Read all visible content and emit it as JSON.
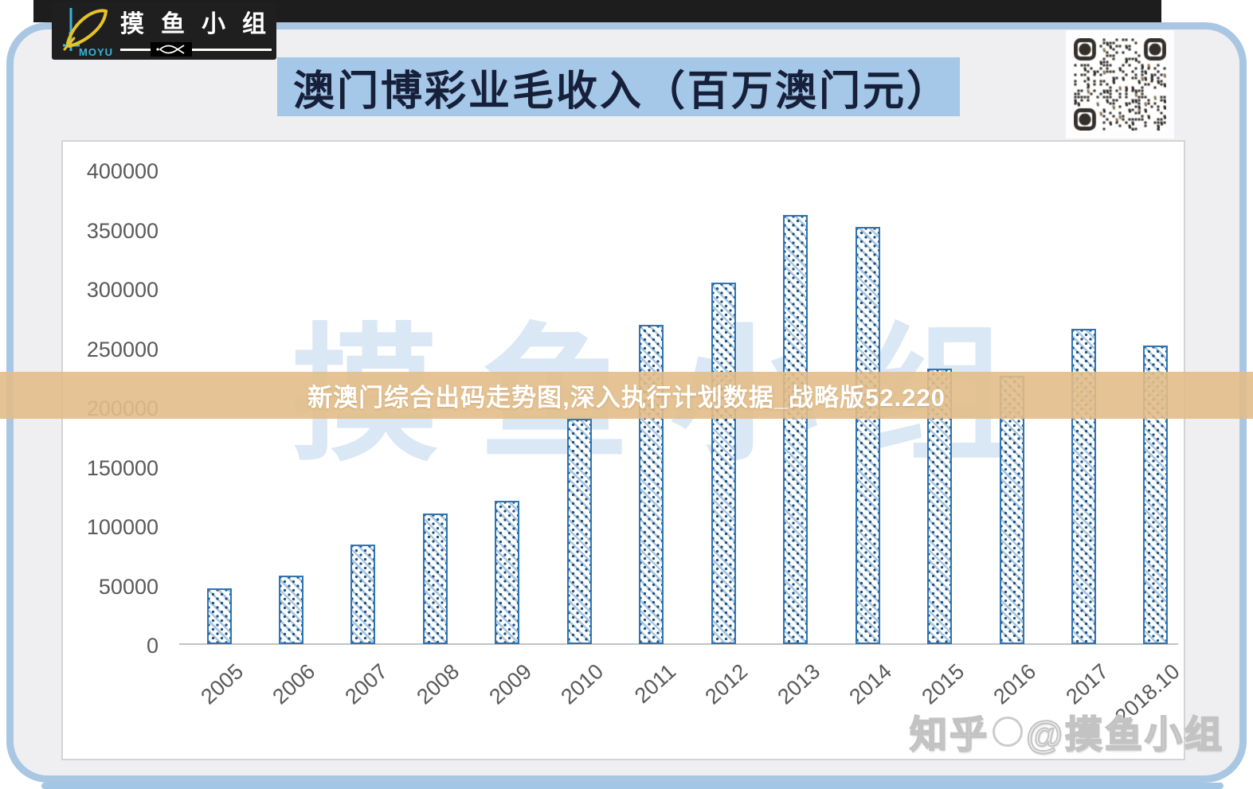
{
  "logo": {
    "brand": "MOYU",
    "group_name": "摸鱼小组"
  },
  "header": {
    "title": "澳门博彩业毛收入（百万澳门元）"
  },
  "banner": {
    "text": "新澳门综合出码走势图,深入执行计划数据_战略版52.220"
  },
  "watermarks": {
    "background": "摸鱼小组",
    "credit_prefix": "知乎",
    "credit_handle": "@摸鱼小组"
  },
  "colors": {
    "frame_blue": "#a9c7e3",
    "title_bg": "#a5c7e8",
    "banner_tan": "#e2bd88",
    "bar_border": "#2e75b6",
    "bar_hatch": "#a9c7e3",
    "bar_dot": "#1f4e79",
    "axis_text": "#595959",
    "qr_dark": "#332f2a"
  },
  "chart_data": {
    "type": "bar",
    "title": "澳门博彩业毛收入（百万澳门元）",
    "xlabel": "",
    "ylabel": "",
    "categories": [
      "2005",
      "2006",
      "2007",
      "2008",
      "2009",
      "2010",
      "2011",
      "2012",
      "2013",
      "2014",
      "2015",
      "2016",
      "2017",
      "2018.10"
    ],
    "values": [
      47000,
      57500,
      84000,
      110000,
      120500,
      189600,
      269000,
      305000,
      362000,
      352000,
      232000,
      226000,
      266000,
      252000
    ],
    "ylim": [
      0,
      400000
    ],
    "yticks": [
      400000,
      350000,
      300000,
      250000,
      200000,
      150000,
      100000,
      50000,
      0
    ],
    "grid": false,
    "legend": null,
    "bar_pattern": "diagonal-hatch-with-dots"
  }
}
